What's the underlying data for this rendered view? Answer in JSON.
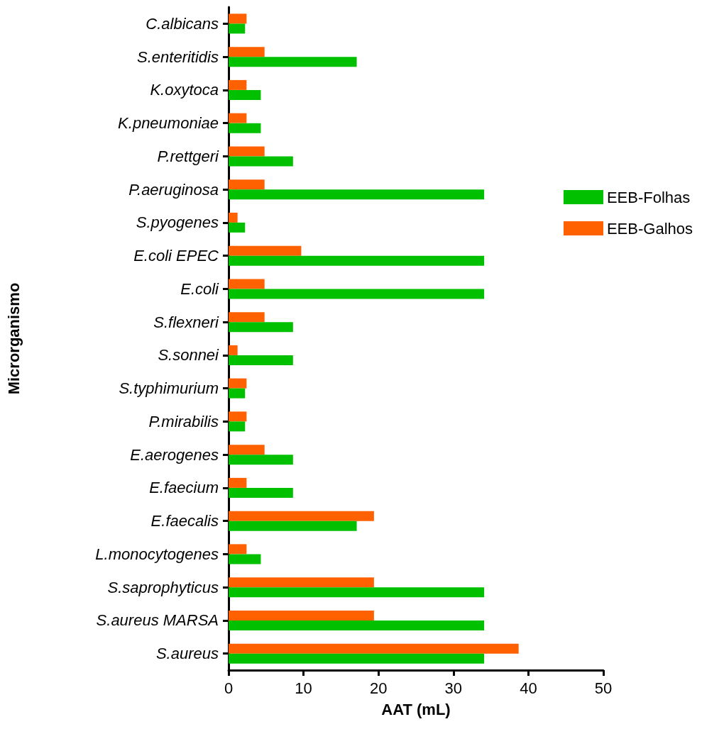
{
  "chart_data": {
    "type": "bar",
    "orientation": "horizontal",
    "xlabel": "AAT (mL)",
    "ylabel": "Microrganismo",
    "categories": [
      "C.albicans",
      "S.enteritidis",
      "K.oxytoca",
      "K.pneumoniae",
      "P.rettgeri",
      "P.aeruginosa",
      "S.pyogenes",
      "E.coli EPEC",
      "E.coli",
      "S.flexneri",
      "S.sonnei",
      "S.typhimurium",
      "P.mirabilis",
      "E.aerogenes",
      "E.faecium",
      "E.faecalis",
      "L.monocytogenes",
      "S.saprophyticus",
      "S.aureus MARSA",
      "S.aureus"
    ],
    "series": [
      {
        "name": "EEB-Folhas",
        "color": "#00c000",
        "values": [
          2.2,
          17.1,
          4.3,
          4.3,
          8.6,
          34.1,
          2.2,
          34.1,
          34.1,
          8.6,
          8.6,
          2.2,
          2.2,
          8.6,
          8.6,
          17.1,
          4.3,
          34.1,
          34.1,
          34.1
        ]
      },
      {
        "name": "EEB-Galhos",
        "color": "#ff6000",
        "values": [
          2.4,
          4.8,
          2.4,
          2.4,
          4.8,
          4.8,
          1.2,
          9.7,
          4.8,
          4.8,
          1.2,
          2.4,
          2.4,
          4.8,
          2.4,
          19.4,
          2.4,
          19.4,
          19.4,
          38.7
        ]
      }
    ],
    "xlim": [
      0,
      50
    ],
    "xticks": [
      0,
      10,
      20,
      30,
      40,
      50
    ],
    "grid": false,
    "legend": "right"
  }
}
